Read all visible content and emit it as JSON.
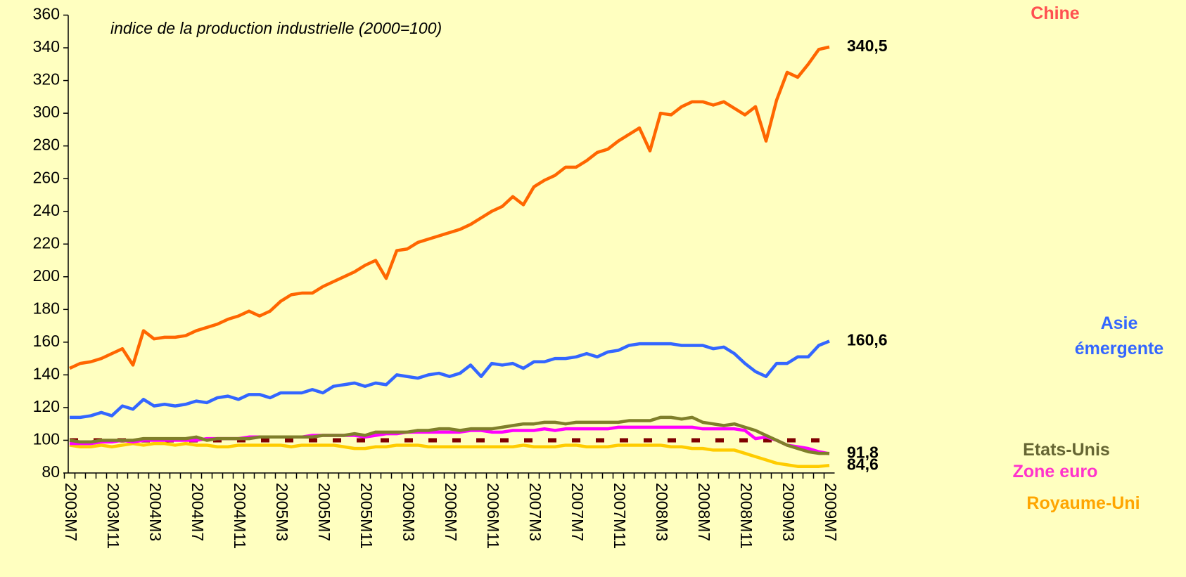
{
  "chart_data": {
    "type": "line",
    "annotation": "indice de la production industrielle (2000=100)",
    "categories": [
      "2003M7",
      null,
      null,
      null,
      "2003M11",
      null,
      null,
      null,
      "2004M3",
      null,
      null,
      null,
      "2004M7",
      null,
      null,
      null,
      "2004M11",
      null,
      null,
      null,
      "2005M3",
      null,
      null,
      null,
      "2005M7",
      null,
      null,
      null,
      "2005M11",
      null,
      null,
      null,
      "2006M3",
      null,
      null,
      null,
      "2006M7",
      null,
      null,
      null,
      "2006M11",
      null,
      null,
      null,
      "2007M3",
      null,
      null,
      null,
      "2007M7",
      null,
      null,
      null,
      "2007M11",
      null,
      null,
      null,
      "2008M3",
      null,
      null,
      null,
      "2008M7",
      null,
      null,
      null,
      "2008M11",
      null,
      null,
      null,
      "2009M3",
      null,
      null,
      null,
      "2009M7"
    ],
    "ylim": [
      80,
      360
    ],
    "yticks": [
      80,
      100,
      120,
      140,
      160,
      180,
      200,
      220,
      240,
      260,
      280,
      300,
      320,
      340,
      360
    ],
    "grid": false,
    "reference_line": {
      "value": 100,
      "color": "#800000"
    },
    "series": [
      {
        "name": "Chine",
        "color": "#ff6600",
        "label_color": "#ff5050",
        "end_label": "340,5",
        "end_label_color": "#ff6600",
        "values": [
          144,
          147,
          148,
          150,
          153,
          156,
          146,
          167,
          162,
          163,
          163,
          164,
          167,
          169,
          171,
          174,
          176,
          179,
          176,
          179,
          185,
          189,
          190,
          190,
          194,
          197,
          200,
          203,
          207,
          210,
          199,
          216,
          217,
          221,
          223,
          225,
          227,
          229,
          232,
          236,
          240,
          243,
          249,
          244,
          255,
          259,
          262,
          267,
          267,
          271,
          276,
          278,
          283,
          287,
          291,
          277,
          300,
          299,
          304,
          307,
          307,
          305,
          307,
          303,
          299,
          304,
          283,
          308,
          325,
          322,
          330,
          339,
          340.5
        ]
      },
      {
        "name": "Asie émergente",
        "color": "#3366ff",
        "label_color": "#3366ff",
        "end_label": "160,6",
        "end_label_color": "#0000ee",
        "values": [
          114,
          114,
          115,
          117,
          115,
          121,
          119,
          125,
          121,
          122,
          121,
          122,
          124,
          123,
          126,
          127,
          125,
          128,
          128,
          126,
          129,
          129,
          129,
          131,
          129,
          133,
          134,
          135,
          133,
          135,
          134,
          140,
          139,
          138,
          140,
          141,
          139,
          141,
          146,
          139,
          147,
          146,
          147,
          144,
          148,
          148,
          150,
          150,
          151,
          153,
          151,
          154,
          155,
          158,
          159,
          159,
          159,
          159,
          158,
          158,
          158,
          156,
          157,
          153,
          147,
          142,
          139,
          147,
          147,
          151,
          151,
          158,
          160.6
        ]
      },
      {
        "name": "Etats-Unis",
        "color": "#7f7f2a",
        "label_color": "#666633",
        "values": [
          100,
          99,
          99,
          100,
          100,
          100,
          100,
          101,
          101,
          101,
          101,
          101,
          102,
          100,
          101,
          101,
          101,
          101,
          102,
          102,
          102,
          102,
          102,
          102,
          103,
          103,
          103,
          104,
          103,
          105,
          105,
          105,
          105,
          106,
          106,
          107,
          107,
          106,
          107,
          107,
          107,
          108,
          109,
          110,
          110,
          111,
          111,
          110,
          111,
          111,
          111,
          111,
          111,
          112,
          112,
          112,
          114,
          114,
          113,
          114,
          111,
          110,
          109,
          110,
          108,
          106,
          103,
          100,
          97,
          95,
          93,
          92,
          92
        ]
      },
      {
        "name": "Zone euro",
        "color": "#ff00ff",
        "label_color": "#ff33cc",
        "end_label": "91,8",
        "end_label_color": "#ee00ee",
        "values": [
          98,
          98,
          98,
          99,
          99,
          100,
          99,
          100,
          100,
          100,
          100,
          100,
          100,
          101,
          101,
          101,
          101,
          102,
          102,
          102,
          102,
          102,
          102,
          103,
          103,
          103,
          103,
          103,
          102,
          103,
          104,
          104,
          105,
          105,
          105,
          105,
          105,
          105,
          106,
          106,
          105,
          105,
          106,
          106,
          106,
          107,
          106,
          107,
          107,
          107,
          107,
          107,
          108,
          108,
          108,
          108,
          108,
          108,
          108,
          108,
          107,
          107,
          107,
          107,
          106,
          101,
          102,
          100,
          97,
          96,
          95,
          93,
          91.8
        ]
      },
      {
        "name": "Royaume-Uni",
        "color": "#ffcc00",
        "label_color": "#ffa500",
        "end_label": "84,6",
        "end_label_color": "#ffcc00",
        "values": [
          97,
          96,
          96,
          97,
          96,
          97,
          98,
          97,
          98,
          98,
          97,
          98,
          97,
          97,
          96,
          96,
          97,
          97,
          97,
          97,
          97,
          96,
          97,
          97,
          97,
          97,
          96,
          95,
          95,
          96,
          96,
          97,
          97,
          97,
          96,
          96,
          96,
          96,
          96,
          96,
          96,
          96,
          96,
          97,
          96,
          96,
          96,
          97,
          97,
          96,
          96,
          96,
          97,
          97,
          97,
          97,
          97,
          96,
          96,
          95,
          95,
          94,
          94,
          94,
          92,
          90,
          88,
          86,
          85,
          84,
          84,
          84,
          84.6
        ]
      }
    ]
  }
}
